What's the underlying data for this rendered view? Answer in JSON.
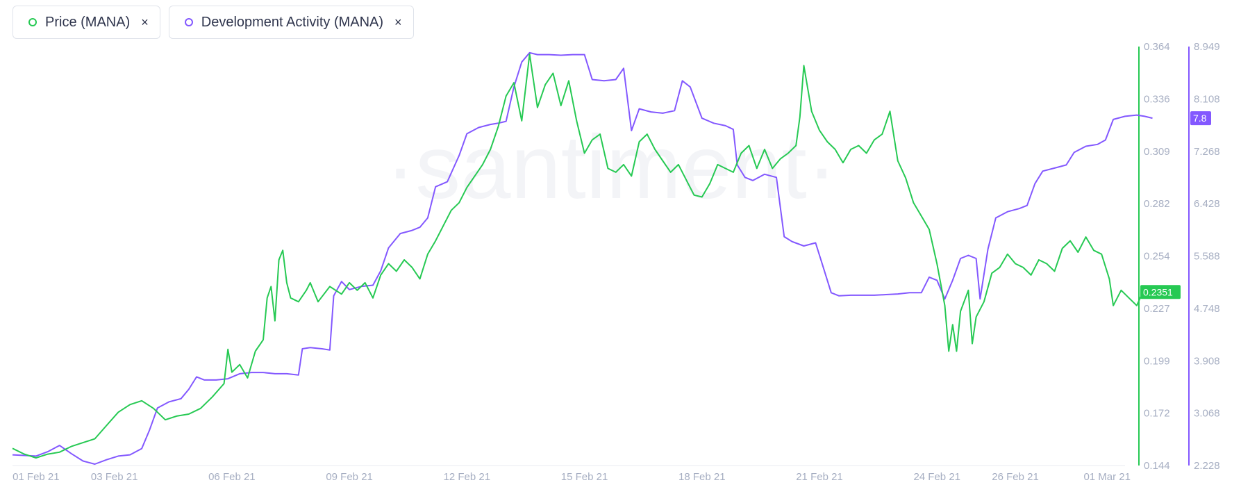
{
  "legend": [
    {
      "label": "Price (MANA)",
      "close": "×",
      "color": "#26c953"
    },
    {
      "label": "Development Activity (MANA)",
      "close": "×",
      "color": "#8358ff"
    }
  ],
  "watermark": "·santiment·",
  "chart_data": {
    "type": "line",
    "x_tick_labels": [
      "01 Feb 21",
      "03 Feb 21",
      "06 Feb 21",
      "09 Feb 21",
      "12 Feb 21",
      "15 Feb 21",
      "18 Feb 21",
      "21 Feb 21",
      "24 Feb 21",
      "26 Feb 21",
      "01 Mar 21"
    ],
    "x_tick_days": [
      0,
      2,
      5,
      8,
      11,
      14,
      17,
      20,
      23,
      25,
      28
    ],
    "x_range_days": [
      -0.6,
      27.8
    ],
    "price_axis": {
      "ticks": [
        "0.364",
        "0.336",
        "0.309",
        "0.282",
        "0.254",
        "0.227",
        "0.199",
        "0.172",
        "0.144"
      ],
      "min": 0.144,
      "max": 0.364,
      "color": "#26c953"
    },
    "dev_axis": {
      "ticks": [
        "8.949",
        "8.108",
        "7.268",
        "6.428",
        "5.588",
        "4.748",
        "3.908",
        "3.068",
        "2.228"
      ],
      "min": 2.228,
      "max": 8.949,
      "color": "#8358ff"
    },
    "last_values": {
      "price": "0.2351",
      "dev": "7.8"
    },
    "series": [
      {
        "name": "Price (MANA)",
        "axis": "price",
        "color": "#26c953",
        "points": [
          [
            -0.6,
            0.153
          ],
          [
            -0.3,
            0.15
          ],
          [
            0.0,
            0.148
          ],
          [
            0.3,
            0.15
          ],
          [
            0.6,
            0.151
          ],
          [
            0.9,
            0.154
          ],
          [
            1.2,
            0.156
          ],
          [
            1.5,
            0.158
          ],
          [
            1.8,
            0.165
          ],
          [
            2.1,
            0.172
          ],
          [
            2.4,
            0.176
          ],
          [
            2.7,
            0.178
          ],
          [
            3.0,
            0.174
          ],
          [
            3.3,
            0.168
          ],
          [
            3.6,
            0.17
          ],
          [
            3.9,
            0.171
          ],
          [
            4.2,
            0.174
          ],
          [
            4.5,
            0.18
          ],
          [
            4.8,
            0.187
          ],
          [
            4.9,
            0.205
          ],
          [
            5.0,
            0.193
          ],
          [
            5.2,
            0.197
          ],
          [
            5.4,
            0.19
          ],
          [
            5.6,
            0.204
          ],
          [
            5.8,
            0.21
          ],
          [
            5.9,
            0.232
          ],
          [
            6.0,
            0.238
          ],
          [
            6.1,
            0.22
          ],
          [
            6.2,
            0.252
          ],
          [
            6.3,
            0.257
          ],
          [
            6.4,
            0.24
          ],
          [
            6.5,
            0.232
          ],
          [
            6.7,
            0.23
          ],
          [
            6.9,
            0.236
          ],
          [
            7.0,
            0.24
          ],
          [
            7.2,
            0.23
          ],
          [
            7.5,
            0.238
          ],
          [
            7.8,
            0.234
          ],
          [
            8.0,
            0.24
          ],
          [
            8.2,
            0.236
          ],
          [
            8.4,
            0.24
          ],
          [
            8.6,
            0.232
          ],
          [
            8.8,
            0.244
          ],
          [
            9.0,
            0.25
          ],
          [
            9.2,
            0.246
          ],
          [
            9.4,
            0.252
          ],
          [
            9.6,
            0.248
          ],
          [
            9.8,
            0.242
          ],
          [
            10.0,
            0.255
          ],
          [
            10.2,
            0.262
          ],
          [
            10.4,
            0.27
          ],
          [
            10.6,
            0.278
          ],
          [
            10.8,
            0.282
          ],
          [
            11.0,
            0.29
          ],
          [
            11.2,
            0.296
          ],
          [
            11.4,
            0.302
          ],
          [
            11.6,
            0.31
          ],
          [
            11.8,
            0.322
          ],
          [
            12.0,
            0.338
          ],
          [
            12.2,
            0.345
          ],
          [
            12.4,
            0.325
          ],
          [
            12.6,
            0.36
          ],
          [
            12.8,
            0.332
          ],
          [
            13.0,
            0.344
          ],
          [
            13.2,
            0.35
          ],
          [
            13.4,
            0.333
          ],
          [
            13.6,
            0.346
          ],
          [
            13.8,
            0.325
          ],
          [
            14.0,
            0.308
          ],
          [
            14.2,
            0.315
          ],
          [
            14.4,
            0.318
          ],
          [
            14.6,
            0.3
          ],
          [
            14.8,
            0.298
          ],
          [
            15.0,
            0.302
          ],
          [
            15.2,
            0.296
          ],
          [
            15.4,
            0.314
          ],
          [
            15.6,
            0.318
          ],
          [
            15.8,
            0.31
          ],
          [
            16.0,
            0.304
          ],
          [
            16.2,
            0.298
          ],
          [
            16.4,
            0.302
          ],
          [
            16.6,
            0.294
          ],
          [
            16.8,
            0.286
          ],
          [
            17.0,
            0.285
          ],
          [
            17.2,
            0.292
          ],
          [
            17.4,
            0.302
          ],
          [
            17.6,
            0.3
          ],
          [
            17.8,
            0.298
          ],
          [
            18.0,
            0.308
          ],
          [
            18.2,
            0.312
          ],
          [
            18.4,
            0.3
          ],
          [
            18.6,
            0.31
          ],
          [
            18.8,
            0.3
          ],
          [
            19.0,
            0.305
          ],
          [
            19.2,
            0.308
          ],
          [
            19.4,
            0.312
          ],
          [
            19.5,
            0.327
          ],
          [
            19.6,
            0.354
          ],
          [
            19.8,
            0.33
          ],
          [
            20.0,
            0.32
          ],
          [
            20.2,
            0.314
          ],
          [
            20.4,
            0.31
          ],
          [
            20.6,
            0.303
          ],
          [
            20.8,
            0.31
          ],
          [
            21.0,
            0.312
          ],
          [
            21.2,
            0.308
          ],
          [
            21.4,
            0.315
          ],
          [
            21.6,
            0.318
          ],
          [
            21.8,
            0.33
          ],
          [
            22.0,
            0.304
          ],
          [
            22.2,
            0.295
          ],
          [
            22.4,
            0.282
          ],
          [
            22.6,
            0.275
          ],
          [
            22.8,
            0.268
          ],
          [
            23.0,
            0.25
          ],
          [
            23.2,
            0.228
          ],
          [
            23.3,
            0.204
          ],
          [
            23.4,
            0.218
          ],
          [
            23.5,
            0.204
          ],
          [
            23.6,
            0.225
          ],
          [
            23.8,
            0.236
          ],
          [
            23.9,
            0.208
          ],
          [
            24.0,
            0.222
          ],
          [
            24.2,
            0.23
          ],
          [
            24.4,
            0.245
          ],
          [
            24.6,
            0.248
          ],
          [
            24.8,
            0.255
          ],
          [
            25.0,
            0.25
          ],
          [
            25.2,
            0.248
          ],
          [
            25.4,
            0.244
          ],
          [
            25.6,
            0.252
          ],
          [
            25.8,
            0.25
          ],
          [
            26.0,
            0.246
          ],
          [
            26.2,
            0.258
          ],
          [
            26.4,
            0.262
          ],
          [
            26.6,
            0.256
          ],
          [
            26.8,
            0.264
          ],
          [
            27.0,
            0.257
          ],
          [
            27.2,
            0.255
          ],
          [
            27.4,
            0.242
          ],
          [
            27.5,
            0.228
          ],
          [
            27.7,
            0.236
          ],
          [
            27.9,
            0.232
          ],
          [
            28.1,
            0.228
          ],
          [
            28.3,
            0.237
          ],
          [
            28.5,
            0.235
          ]
        ]
      },
      {
        "name": "Development Activity (MANA)",
        "axis": "dev",
        "color": "#8358ff",
        "points": [
          [
            -0.6,
            2.4
          ],
          [
            0.0,
            2.38
          ],
          [
            0.3,
            2.45
          ],
          [
            0.6,
            2.55
          ],
          [
            0.9,
            2.42
          ],
          [
            1.2,
            2.3
          ],
          [
            1.5,
            2.25
          ],
          [
            1.8,
            2.32
          ],
          [
            2.1,
            2.38
          ],
          [
            2.4,
            2.4
          ],
          [
            2.7,
            2.5
          ],
          [
            2.9,
            2.8
          ],
          [
            3.1,
            3.15
          ],
          [
            3.4,
            3.25
          ],
          [
            3.7,
            3.3
          ],
          [
            3.9,
            3.45
          ],
          [
            4.1,
            3.65
          ],
          [
            4.3,
            3.6
          ],
          [
            4.6,
            3.6
          ],
          [
            4.9,
            3.62
          ],
          [
            5.2,
            3.7
          ],
          [
            5.5,
            3.72
          ],
          [
            5.8,
            3.72
          ],
          [
            6.1,
            3.7
          ],
          [
            6.4,
            3.7
          ],
          [
            6.7,
            3.68
          ],
          [
            6.8,
            4.1
          ],
          [
            7.0,
            4.12
          ],
          [
            7.3,
            4.1
          ],
          [
            7.5,
            4.08
          ],
          [
            7.6,
            4.95
          ],
          [
            7.8,
            5.18
          ],
          [
            8.0,
            5.05
          ],
          [
            8.3,
            5.1
          ],
          [
            8.6,
            5.12
          ],
          [
            8.8,
            5.35
          ],
          [
            9.0,
            5.72
          ],
          [
            9.3,
            5.95
          ],
          [
            9.6,
            6.0
          ],
          [
            9.8,
            6.05
          ],
          [
            10.0,
            6.2
          ],
          [
            10.2,
            6.7
          ],
          [
            10.5,
            6.78
          ],
          [
            10.8,
            7.2
          ],
          [
            11.0,
            7.55
          ],
          [
            11.3,
            7.65
          ],
          [
            11.6,
            7.7
          ],
          [
            11.8,
            7.72
          ],
          [
            12.0,
            7.75
          ],
          [
            12.2,
            8.3
          ],
          [
            12.4,
            8.7
          ],
          [
            12.6,
            8.85
          ],
          [
            12.8,
            8.82
          ],
          [
            13.1,
            8.82
          ],
          [
            13.4,
            8.81
          ],
          [
            13.7,
            8.82
          ],
          [
            14.0,
            8.82
          ],
          [
            14.2,
            8.42
          ],
          [
            14.5,
            8.4
          ],
          [
            14.8,
            8.42
          ],
          [
            15.0,
            8.6
          ],
          [
            15.2,
            7.6
          ],
          [
            15.4,
            7.95
          ],
          [
            15.7,
            7.9
          ],
          [
            16.0,
            7.88
          ],
          [
            16.3,
            7.92
          ],
          [
            16.5,
            8.4
          ],
          [
            16.7,
            8.3
          ],
          [
            17.0,
            7.8
          ],
          [
            17.3,
            7.72
          ],
          [
            17.6,
            7.68
          ],
          [
            17.8,
            7.62
          ],
          [
            17.9,
            7.05
          ],
          [
            18.1,
            6.85
          ],
          [
            18.3,
            6.8
          ],
          [
            18.6,
            6.9
          ],
          [
            18.9,
            6.85
          ],
          [
            19.1,
            5.9
          ],
          [
            19.3,
            5.82
          ],
          [
            19.6,
            5.75
          ],
          [
            19.9,
            5.8
          ],
          [
            20.1,
            5.4
          ],
          [
            20.3,
            5.0
          ],
          [
            20.5,
            4.95
          ],
          [
            20.8,
            4.96
          ],
          [
            21.1,
            4.96
          ],
          [
            21.4,
            4.96
          ],
          [
            21.7,
            4.97
          ],
          [
            22.0,
            4.98
          ],
          [
            22.3,
            5.0
          ],
          [
            22.6,
            5.0
          ],
          [
            22.8,
            5.25
          ],
          [
            23.0,
            5.2
          ],
          [
            23.2,
            4.9
          ],
          [
            23.4,
            5.2
          ],
          [
            23.6,
            5.55
          ],
          [
            23.8,
            5.6
          ],
          [
            24.0,
            5.55
          ],
          [
            24.1,
            4.9
          ],
          [
            24.3,
            5.7
          ],
          [
            24.5,
            6.2
          ],
          [
            24.8,
            6.3
          ],
          [
            25.1,
            6.35
          ],
          [
            25.3,
            6.4
          ],
          [
            25.5,
            6.75
          ],
          [
            25.7,
            6.95
          ],
          [
            26.0,
            7.0
          ],
          [
            26.3,
            7.05
          ],
          [
            26.5,
            7.25
          ],
          [
            26.8,
            7.35
          ],
          [
            27.1,
            7.38
          ],
          [
            27.3,
            7.45
          ],
          [
            27.5,
            7.78
          ],
          [
            27.8,
            7.83
          ],
          [
            28.1,
            7.85
          ],
          [
            28.3,
            7.83
          ],
          [
            28.5,
            7.8
          ]
        ]
      }
    ]
  }
}
